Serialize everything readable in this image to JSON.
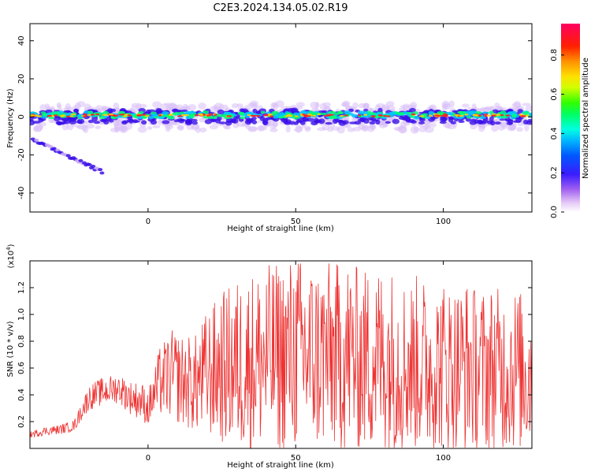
{
  "title": "C2E3.2024.134.05.02.R19",
  "spectrogram": {
    "xlabel": "Height of straight line (km)",
    "ylabel": "Frequency (Hz)",
    "xlim": [
      -40,
      130
    ],
    "ylim": [
      -50,
      49
    ],
    "xticks": [
      0,
      50,
      100
    ],
    "yticks": [
      -40,
      -20,
      0,
      20,
      40
    ],
    "colorbar": {
      "label": "Normalized spectral amplitude",
      "ticks": [
        "0.0",
        "0.2",
        "0.4",
        "0.6",
        "0.8"
      ],
      "range": [
        0,
        0.96
      ]
    }
  },
  "chart_data": {
    "type": "line",
    "title": "",
    "xlabel": "Height of straight line (km)",
    "ylabel": "SNR (10 * v/v)",
    "scale_note": "(x10",
    "scale_exp": "4",
    "scale_close": ")",
    "xlim": [
      -40,
      130
    ],
    "ylim": [
      0,
      1.4
    ],
    "xticks": [
      0,
      50,
      100
    ],
    "yticks": [
      "0.2",
      "0.4",
      "0.6",
      "0.8",
      "1.0",
      "1.2"
    ],
    "series": [
      {
        "color": "#ee3333",
        "x": [
          -40,
          -35,
          -30,
          -25,
          -22,
          -20,
          -16,
          -10,
          -6,
          -2,
          0,
          4,
          8,
          12,
          16,
          20,
          25,
          30,
          35,
          40,
          44,
          48,
          52,
          56,
          60,
          64,
          68,
          72,
          76,
          80,
          84,
          88,
          92,
          96,
          100,
          104,
          108,
          112,
          116,
          120,
          124,
          128,
          130
        ],
        "values": [
          0.1,
          0.13,
          0.14,
          0.17,
          0.3,
          0.38,
          0.42,
          0.45,
          0.38,
          0.35,
          0.3,
          0.5,
          0.55,
          0.5,
          0.48,
          0.56,
          0.6,
          0.62,
          0.65,
          0.67,
          0.68,
          0.7,
          0.72,
          0.68,
          0.7,
          0.68,
          0.7,
          0.65,
          0.68,
          0.67,
          0.66,
          0.62,
          0.64,
          0.6,
          0.62,
          0.6,
          0.62,
          0.58,
          0.6,
          0.58,
          0.6,
          0.56,
          0.55
        ]
      }
    ]
  }
}
